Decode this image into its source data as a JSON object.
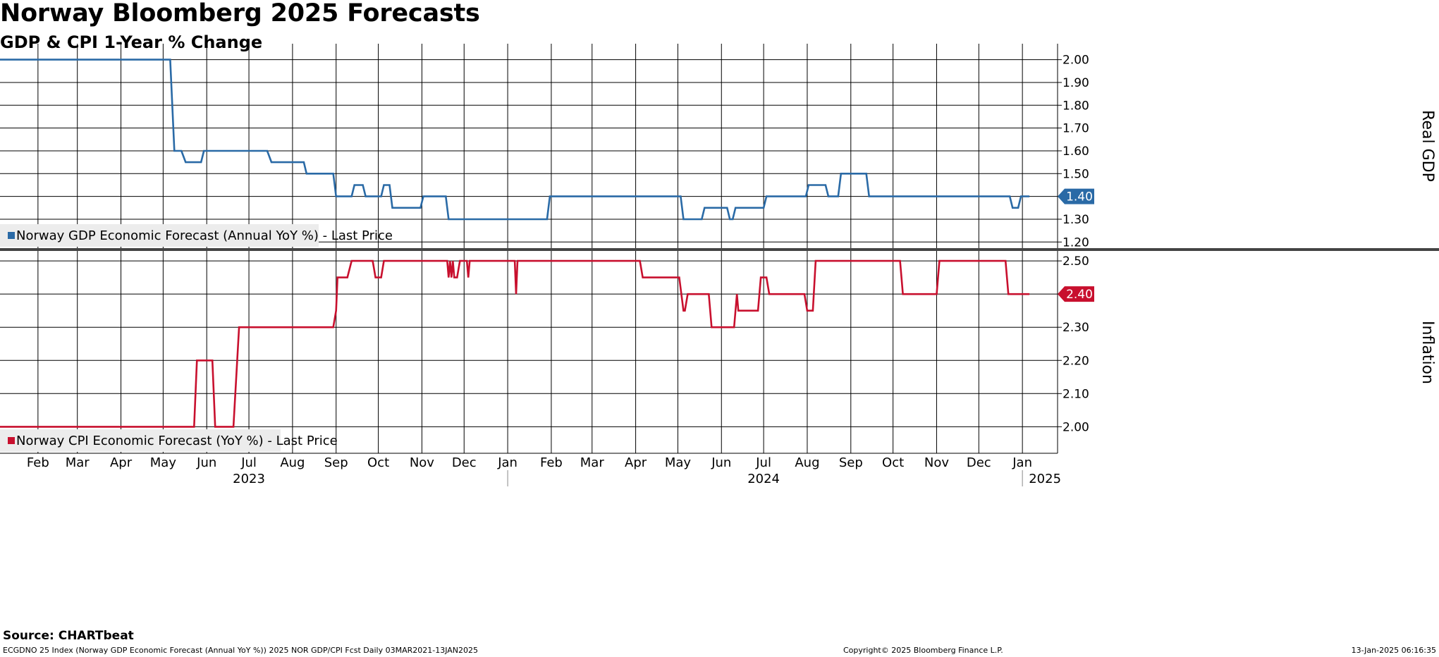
{
  "header": {
    "title": "Norway Bloomberg 2025 Forecasts",
    "subtitle": "GDP & CPI 1-Year % Change"
  },
  "footer": {
    "source": "Source: CHARTbeat",
    "index_info": "ECGDNO 25 Index (Norway GDP Economic Forecast (Annual YoY %)) 2025 NOR GDP/CPI Fcst  Daily 03MAR2021-13JAN2025",
    "copyright": "Copyright© 2025 Bloomberg Finance L.P.",
    "timestamp": "13-Jan-2025 06:16:35"
  },
  "colors": {
    "gdp": "#2a6aa6",
    "cpi": "#c8102e",
    "grid": "#000000",
    "legend_bg": "#ececec"
  },
  "chart_data": [
    {
      "type": "line",
      "panel": "top",
      "ylabel": "Real GDP",
      "ylim": [
        1.17,
        2.07
      ],
      "yticks": [
        "1.20",
        "1.30",
        "1.40",
        "1.50",
        "1.60",
        "1.70",
        "1.80",
        "1.90",
        "2.00"
      ],
      "last_value_label": "1.40",
      "grid": true,
      "legend": "bottom-left",
      "series": [
        {
          "name": "Norway GDP Economic Forecast (Annual YoY %) - Last Price",
          "points": [
            [
              "2023-01-05",
              2.0
            ],
            [
              "2023-05-06",
              2.0
            ],
            [
              "2023-05-09",
              1.6
            ],
            [
              "2023-05-14",
              1.6
            ],
            [
              "2023-05-17",
              1.55
            ],
            [
              "2023-05-28",
              1.55
            ],
            [
              "2023-05-30",
              1.6
            ],
            [
              "2023-07-14",
              1.6
            ],
            [
              "2023-07-17",
              1.55
            ],
            [
              "2023-08-09",
              1.55
            ],
            [
              "2023-08-11",
              1.5
            ],
            [
              "2023-08-30",
              1.5
            ],
            [
              "2023-09-01",
              1.4
            ],
            [
              "2023-09-12",
              1.4
            ],
            [
              "2023-09-14",
              1.45
            ],
            [
              "2023-09-20",
              1.45
            ],
            [
              "2023-09-22",
              1.4
            ],
            [
              "2023-10-03",
              1.4
            ],
            [
              "2023-10-05",
              1.45
            ],
            [
              "2023-10-09",
              1.45
            ],
            [
              "2023-10-11",
              1.35
            ],
            [
              "2023-10-31",
              1.35
            ],
            [
              "2023-11-02",
              1.4
            ],
            [
              "2023-11-18",
              1.4
            ],
            [
              "2023-11-20",
              1.3
            ],
            [
              "2024-01-29",
              1.3
            ],
            [
              "2024-01-31",
              1.4
            ],
            [
              "2024-05-03",
              1.4
            ],
            [
              "2024-05-05",
              1.3
            ],
            [
              "2024-05-18",
              1.3
            ],
            [
              "2024-05-20",
              1.35
            ],
            [
              "2024-06-05",
              1.35
            ],
            [
              "2024-06-07",
              1.3
            ],
            [
              "2024-06-09",
              1.3
            ],
            [
              "2024-06-11",
              1.35
            ],
            [
              "2024-07-01",
              1.35
            ],
            [
              "2024-07-03",
              1.4
            ],
            [
              "2024-07-31",
              1.4
            ],
            [
              "2024-08-02",
              1.45
            ],
            [
              "2024-08-14",
              1.45
            ],
            [
              "2024-08-16",
              1.4
            ],
            [
              "2024-08-23",
              1.4
            ],
            [
              "2024-08-25",
              1.5
            ],
            [
              "2024-09-12",
              1.5
            ],
            [
              "2024-09-14",
              1.4
            ],
            [
              "2024-12-23",
              1.4
            ],
            [
              "2024-12-25",
              1.35
            ],
            [
              "2024-12-29",
              1.35
            ],
            [
              "2024-12-31",
              1.4
            ],
            [
              "2025-01-06",
              1.4
            ]
          ]
        }
      ]
    },
    {
      "type": "line",
      "panel": "bottom",
      "ylabel": "Inflation",
      "ylim": [
        1.92,
        2.53
      ],
      "yticks": [
        "2.00",
        "2.10",
        "2.20",
        "2.30",
        "2.40",
        "2.50"
      ],
      "last_value_label": "2.40",
      "grid": true,
      "legend": "bottom-left",
      "series": [
        {
          "name": "Norway CPI Economic Forecast (YoY %) - Last Price",
          "points": [
            [
              "2023-01-05",
              2.0
            ],
            [
              "2023-05-23",
              2.0
            ],
            [
              "2023-05-25",
              2.2
            ],
            [
              "2023-06-05",
              2.2
            ],
            [
              "2023-06-07",
              2.0
            ],
            [
              "2023-06-20",
              2.0
            ],
            [
              "2023-06-24",
              2.3
            ],
            [
              "2023-08-30",
              2.3
            ],
            [
              "2023-09-01",
              2.35
            ],
            [
              "2023-09-02",
              2.45
            ],
            [
              "2023-09-09",
              2.45
            ],
            [
              "2023-09-12",
              2.5
            ],
            [
              "2023-09-27",
              2.5
            ],
            [
              "2023-09-29",
              2.45
            ],
            [
              "2023-10-03",
              2.45
            ],
            [
              "2023-10-05",
              2.5
            ],
            [
              "2023-11-19",
              2.5
            ],
            [
              "2023-11-20",
              2.45
            ],
            [
              "2023-11-21",
              2.5
            ],
            [
              "2023-11-22",
              2.45
            ],
            [
              "2023-11-23",
              2.5
            ],
            [
              "2023-11-24",
              2.45
            ],
            [
              "2023-11-26",
              2.45
            ],
            [
              "2023-11-28",
              2.5
            ],
            [
              "2023-12-03",
              2.5
            ],
            [
              "2023-12-04",
              2.45
            ],
            [
              "2023-12-05",
              2.5
            ],
            [
              "2024-01-06",
              2.5
            ],
            [
              "2024-01-07",
              2.4
            ],
            [
              "2024-01-08",
              2.5
            ],
            [
              "2024-04-04",
              2.5
            ],
            [
              "2024-04-06",
              2.45
            ],
            [
              "2024-05-02",
              2.45
            ],
            [
              "2024-05-05",
              2.35
            ],
            [
              "2024-05-06",
              2.35
            ],
            [
              "2024-05-08",
              2.4
            ],
            [
              "2024-05-23",
              2.4
            ],
            [
              "2024-05-25",
              2.3
            ],
            [
              "2024-06-10",
              2.3
            ],
            [
              "2024-06-12",
              2.4
            ],
            [
              "2024-06-13",
              2.35
            ],
            [
              "2024-06-27",
              2.35
            ],
            [
              "2024-06-29",
              2.45
            ],
            [
              "2024-07-03",
              2.45
            ],
            [
              "2024-07-05",
              2.4
            ],
            [
              "2024-07-30",
              2.4
            ],
            [
              "2024-08-01",
              2.35
            ],
            [
              "2024-08-05",
              2.35
            ],
            [
              "2024-08-07",
              2.5
            ],
            [
              "2024-10-06",
              2.5
            ],
            [
              "2024-10-08",
              2.4
            ],
            [
              "2024-11-01",
              2.4
            ],
            [
              "2024-11-03",
              2.5
            ],
            [
              "2024-12-20",
              2.5
            ],
            [
              "2024-12-22",
              2.4
            ],
            [
              "2025-01-06",
              2.4
            ]
          ]
        }
      ]
    }
  ],
  "x_axis": {
    "month_ticks": [
      {
        "label": "Feb",
        "date": "2023-02-01"
      },
      {
        "label": "Mar",
        "date": "2023-03-01"
      },
      {
        "label": "Apr",
        "date": "2023-04-01"
      },
      {
        "label": "May",
        "date": "2023-05-01"
      },
      {
        "label": "Jun",
        "date": "2023-06-01"
      },
      {
        "label": "Jul",
        "date": "2023-07-01"
      },
      {
        "label": "Aug",
        "date": "2023-08-01"
      },
      {
        "label": "Sep",
        "date": "2023-09-01"
      },
      {
        "label": "Oct",
        "date": "2023-10-01"
      },
      {
        "label": "Nov",
        "date": "2023-11-01"
      },
      {
        "label": "Dec",
        "date": "2023-12-01"
      },
      {
        "label": "Jan",
        "date": "2024-01-01"
      },
      {
        "label": "Feb",
        "date": "2024-02-01"
      },
      {
        "label": "Mar",
        "date": "2024-03-01"
      },
      {
        "label": "Apr",
        "date": "2024-04-01"
      },
      {
        "label": "May",
        "date": "2024-05-01"
      },
      {
        "label": "Jun",
        "date": "2024-06-01"
      },
      {
        "label": "Jul",
        "date": "2024-07-01"
      },
      {
        "label": "Aug",
        "date": "2024-08-01"
      },
      {
        "label": "Sep",
        "date": "2024-09-01"
      },
      {
        "label": "Oct",
        "date": "2024-10-01"
      },
      {
        "label": "Nov",
        "date": "2024-11-01"
      },
      {
        "label": "Dec",
        "date": "2024-12-01"
      },
      {
        "label": "Jan",
        "date": "2025-01-01"
      }
    ],
    "year_labels": [
      {
        "label": "2023",
        "date": "2023-07-01"
      },
      {
        "label": "2024",
        "date": "2024-07-01"
      },
      {
        "label": "2025",
        "date": "2025-01-01"
      }
    ],
    "year_separators": [
      "2024-01-01",
      "2025-01-01"
    ]
  }
}
